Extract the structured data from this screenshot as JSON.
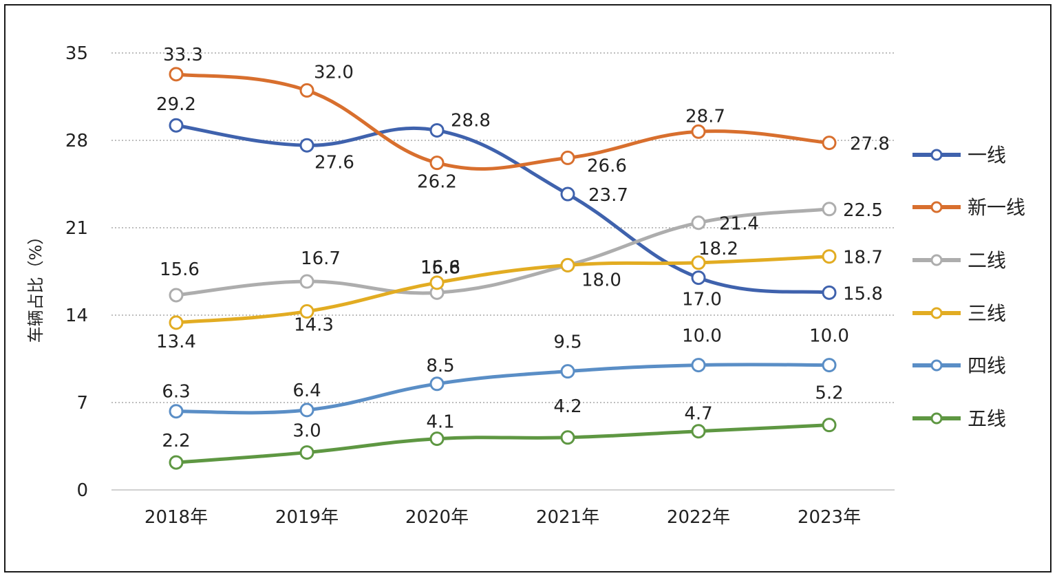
{
  "chart_data": {
    "type": "line",
    "ylabel": "车辆占比（%）",
    "xlabel": "",
    "ylim": [
      0,
      35
    ],
    "yticks": [
      0,
      7,
      14,
      21,
      28,
      35
    ],
    "categories": [
      "2018年",
      "2019年",
      "2020年",
      "2021年",
      "2022年",
      "2023年"
    ],
    "grid": "horizontal dotted",
    "legend_position": "right",
    "series": [
      {
        "name": "一线",
        "color": "#3f62ad",
        "values": [
          29.2,
          27.6,
          28.8,
          23.7,
          17.0,
          15.8
        ]
      },
      {
        "name": "新一线",
        "color": "#d86f2e",
        "values": [
          33.3,
          32.0,
          26.2,
          26.6,
          28.7,
          27.8
        ]
      },
      {
        "name": "二线",
        "color": "#adadad",
        "values": [
          15.6,
          16.7,
          15.8,
          18.0,
          21.4,
          22.5
        ]
      },
      {
        "name": "三线",
        "color": "#e2ac22",
        "values": [
          13.4,
          14.3,
          16.6,
          18.0,
          18.2,
          18.7
        ]
      },
      {
        "name": "四线",
        "color": "#5a8ec6",
        "values": [
          6.3,
          6.4,
          8.5,
          9.5,
          10.0,
          10.0
        ]
      },
      {
        "name": "五线",
        "color": "#5e9742",
        "values": [
          2.2,
          3.0,
          4.1,
          4.2,
          4.7,
          5.2
        ]
      }
    ]
  }
}
